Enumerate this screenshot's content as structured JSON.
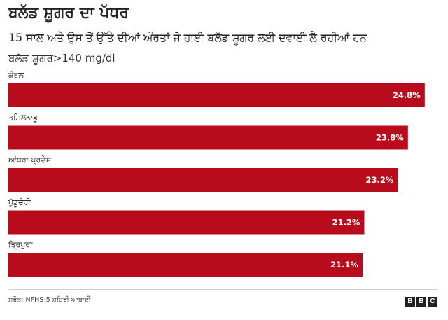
{
  "header": {
    "title": "ਬਲੱਡ ਸ਼ੂਗਰ ਦਾ ਪੱਧਰ",
    "subtitle": "15 ਸਾਲ ਅਤੇ ਉਸ ਤੋਂ ਉੱਤੇ ਦੀਆਂ ਔਰਤਾਂ ਜੋ ਹਾਈ ਬਲੱਡ ਸ਼ੂਗਰ ਲਈ ਦਵਾਈ ਲੈ ਰਹੀਆਂ ਹਨ",
    "unit_label": "ਬਲੱਡ ਸ਼ੂਗਰ>140 mg/dl"
  },
  "chart_data": {
    "type": "bar",
    "orientation": "horizontal",
    "categories": [
      "ਕੇਰਲ",
      "ਤਮਿਲਨਾਡੂ",
      "ਆਂਧਰਾ ਪ੍ਰਦੇਸ਼",
      "ਪੁੱਡੂਚੇਰੀ",
      "ਤ੍ਰਿਪੁਰਾ"
    ],
    "values": [
      24.8,
      23.8,
      23.2,
      21.2,
      21.1
    ],
    "value_labels": [
      "24.8%",
      "23.8%",
      "23.2%",
      "21.2%",
      "21.1%"
    ],
    "xlim": [
      0,
      25.6
    ],
    "bar_color": "#b80c1c",
    "grid": false
  },
  "footer": {
    "source": "ਸਰੋਤ: NFHS-5 ਸ਼ਹਿਰੀ ਆਬਾਦੀ",
    "logo_letters": [
      "B",
      "B",
      "C"
    ]
  }
}
